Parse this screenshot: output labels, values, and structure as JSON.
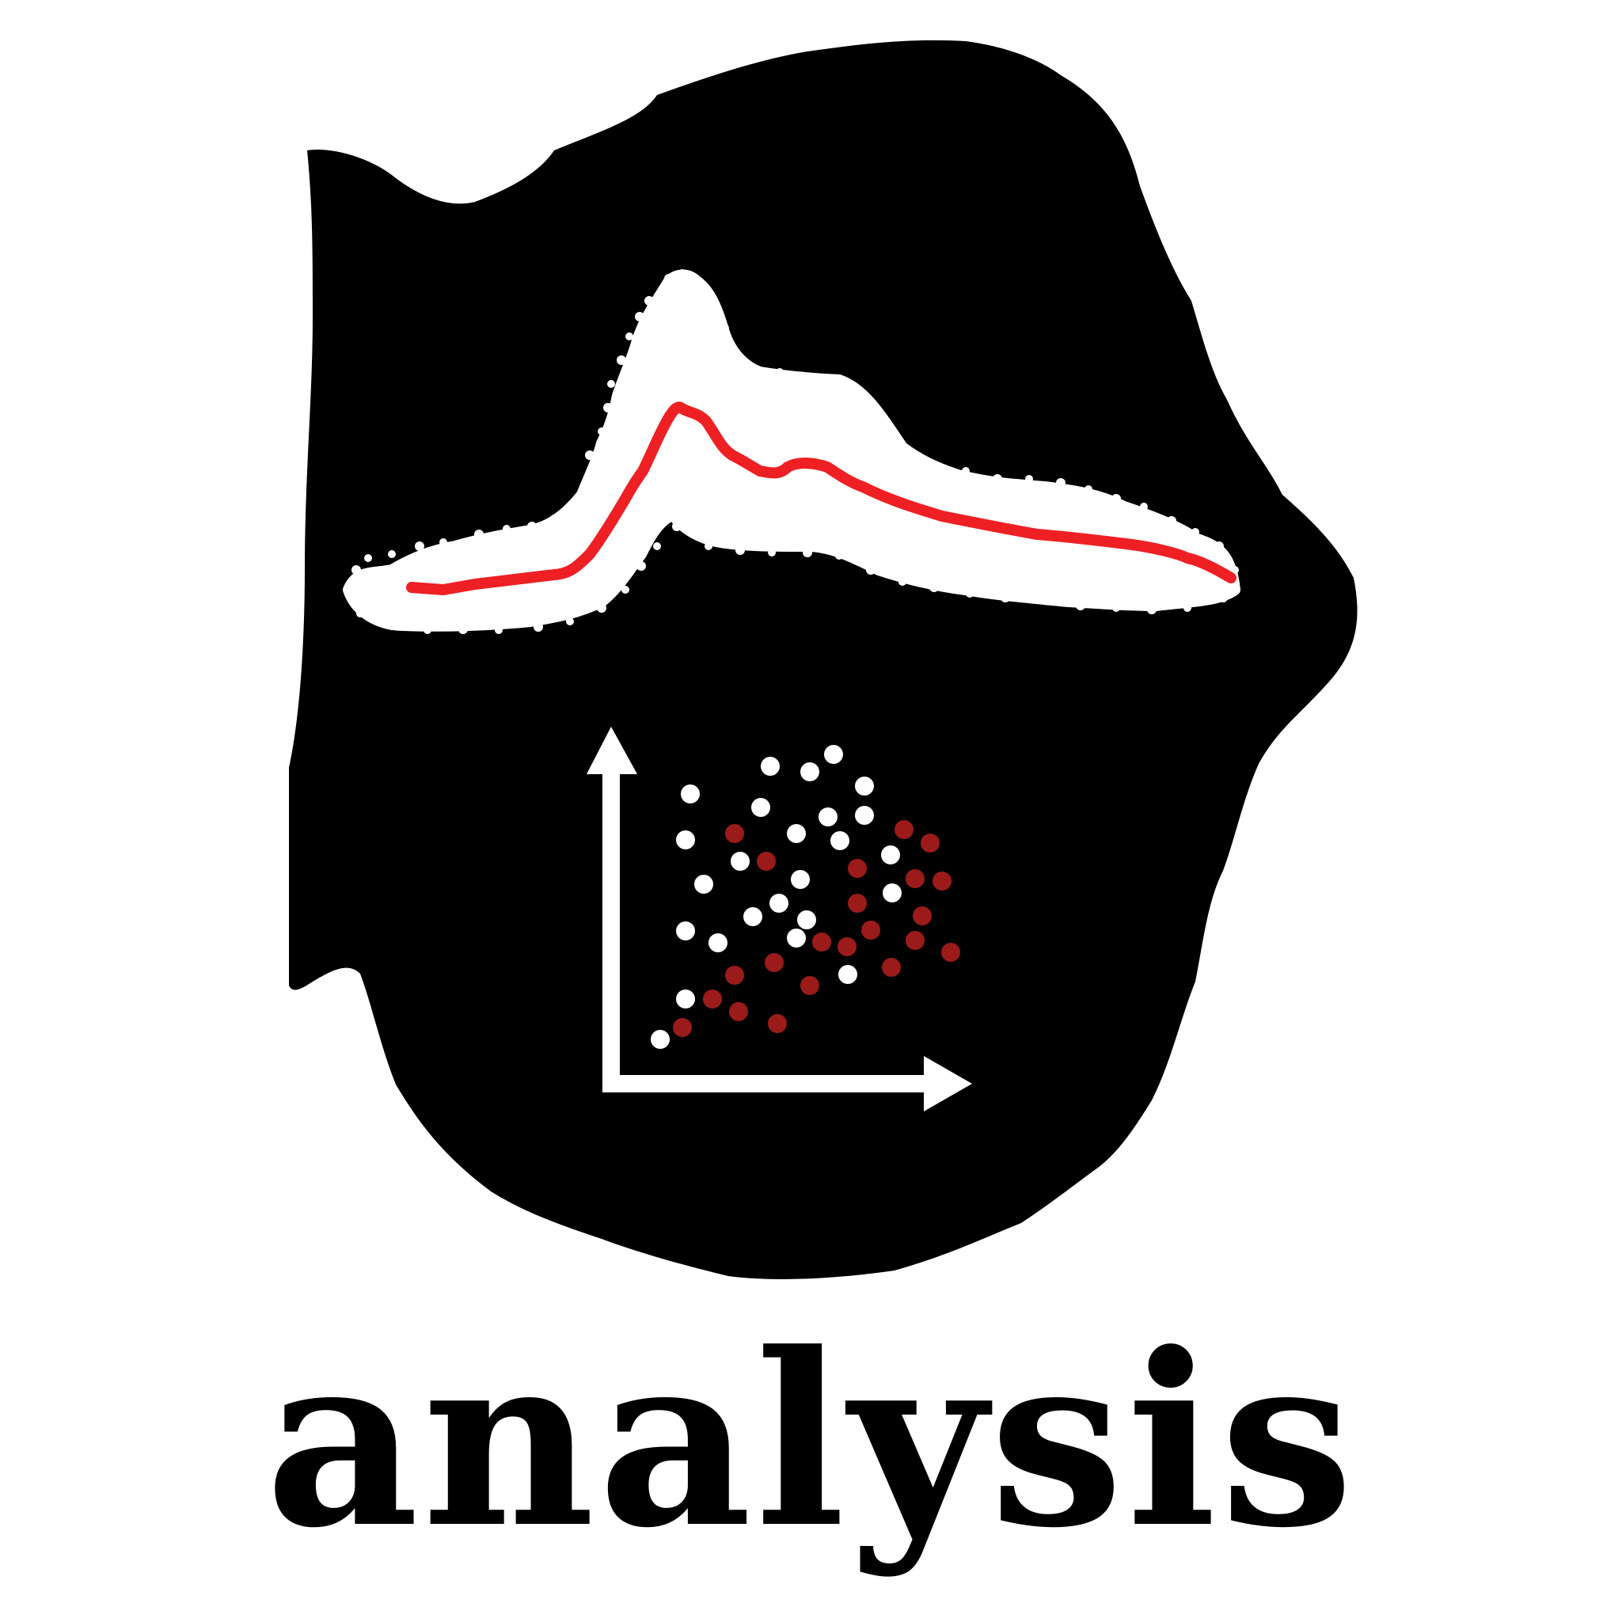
{
  "brand": {
    "wordmark": "analysis",
    "colors": {
      "background": "#ffffff",
      "blob": "#000000",
      "trace": "#ffffff",
      "trace_line": "#ee2024",
      "points_light": "#ffffff",
      "points_dark": "#9b1b1b",
      "axes": "#ffffff"
    }
  },
  "icons": [
    "blob-shape-icon",
    "spectrum-trace-icon",
    "scatter-plot-icon",
    "axes-arrow-icon"
  ]
}
